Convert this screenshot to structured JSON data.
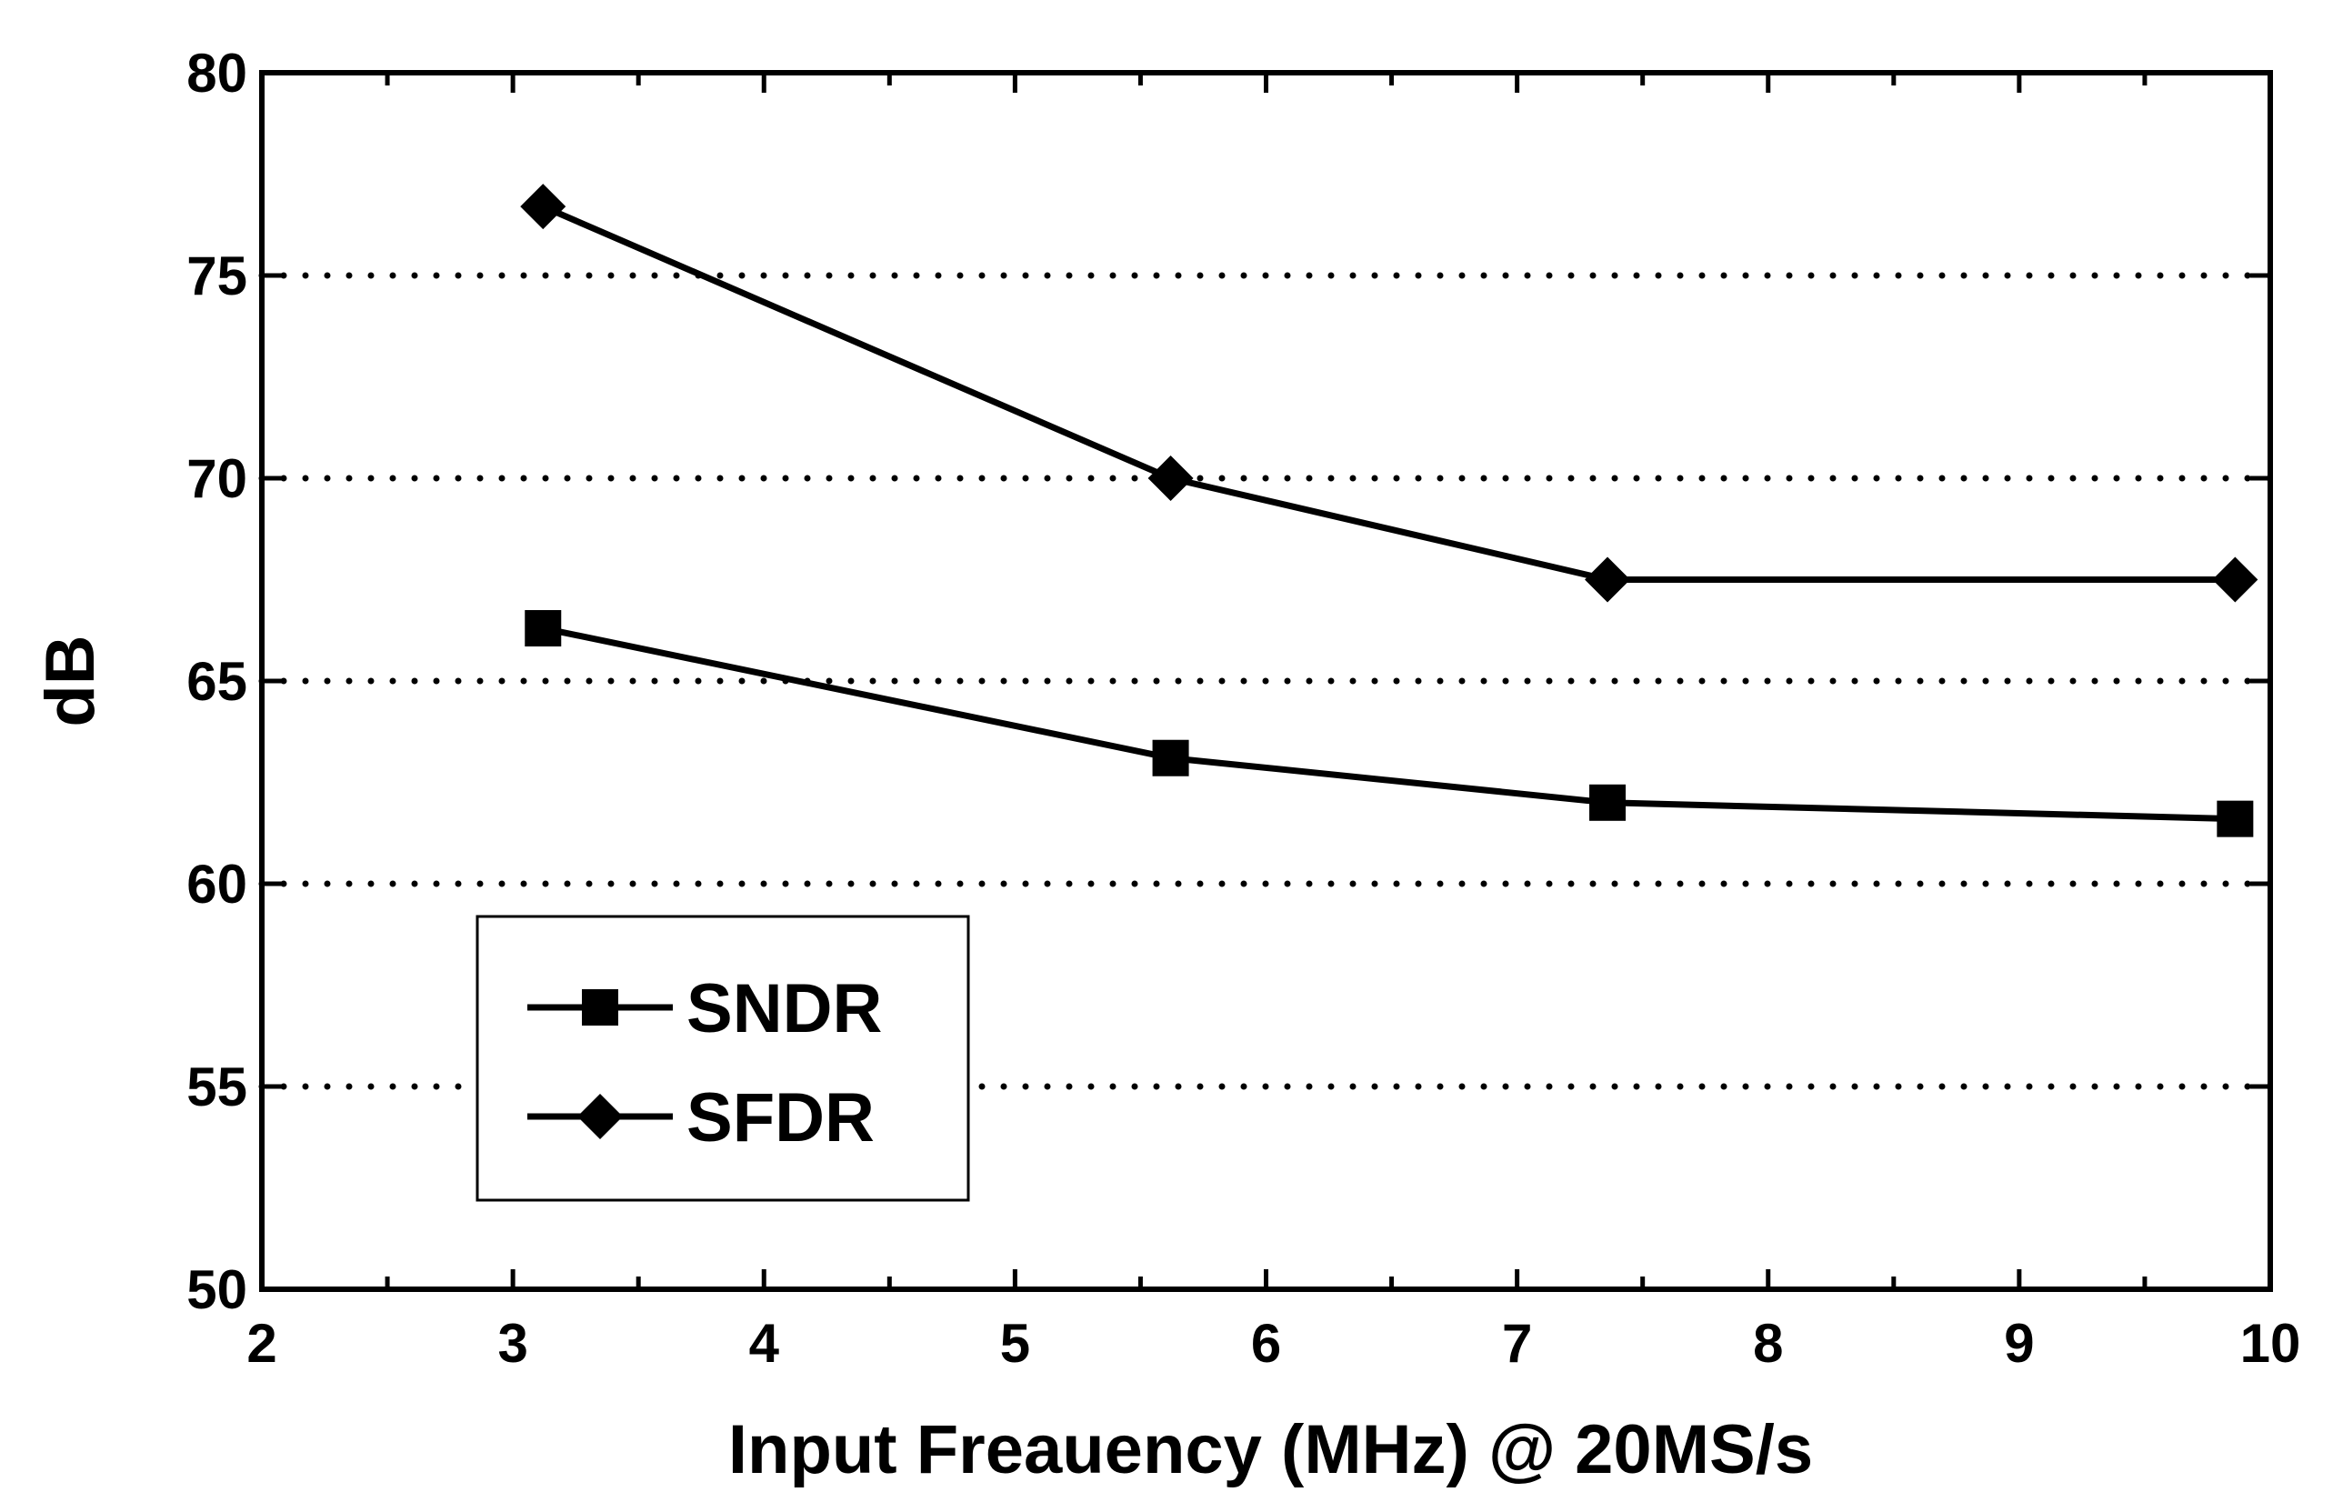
{
  "chart_data": {
    "type": "line",
    "title": "",
    "xlabel": "Input Freauency (MHz) @ 20MS/s",
    "ylabel": "dB",
    "xlim": [
      2,
      10
    ],
    "ylim": [
      50,
      80
    ],
    "xticks": [
      2,
      3,
      4,
      5,
      6,
      7,
      8,
      9,
      10
    ],
    "yticks": [
      50,
      55,
      60,
      65,
      70,
      75,
      80
    ],
    "grid": "horizontal dotted",
    "legend_position": "lower-left",
    "series": [
      {
        "name": "SNDR",
        "marker": "square",
        "x": [
          3.12,
          5.62,
          7.36,
          9.86
        ],
        "values": [
          66.3,
          63.1,
          62.0,
          61.6
        ]
      },
      {
        "name": "SFDR",
        "marker": "diamond",
        "x": [
          3.12,
          5.62,
          7.36,
          9.86
        ],
        "values": [
          76.7,
          70.0,
          67.5,
          67.5
        ]
      }
    ],
    "colors": {
      "line": "#000000",
      "background": "#ffffff"
    }
  }
}
